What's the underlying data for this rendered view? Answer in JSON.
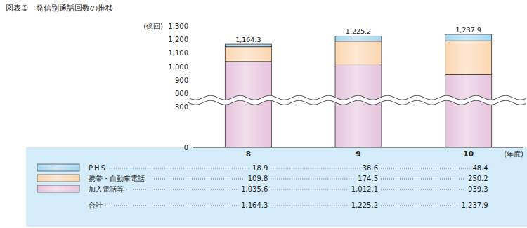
{
  "chart_data": {
    "type": "bar",
    "title": "図表①　発信別通話回数の推移",
    "y_label": "(億回)",
    "x_label": "(年度)",
    "categories": [
      "8",
      "9",
      "10"
    ],
    "stacked": true,
    "grid": false,
    "series": [
      {
        "name": "PHS",
        "color": "#a3d6f1",
        "values": [
          18.9,
          38.6,
          48.4
        ]
      },
      {
        "name": "携帯・自動車電話",
        "color": "#fbd6b0",
        "values": [
          109.8,
          174.5,
          250.2
        ]
      },
      {
        "name": "加入電話等",
        "color": "#e6c3dd",
        "values": [
          1035.6,
          1012.1,
          939.3
        ],
        "value_labels": [
          "1,035.6",
          "1,012.1",
          "939.3"
        ]
      }
    ],
    "totals": {
      "name": "合計",
      "values": [
        1164.3,
        1225.2,
        1237.9
      ],
      "value_labels": [
        "1,164.3",
        "1,225.2",
        "1,237.9"
      ]
    },
    "ylim": [
      0,
      1300
    ],
    "yticks": [
      0,
      300,
      800,
      900,
      {
        "value": 1000,
        "label": "1,000"
      },
      {
        "value": 1100,
        "label": "1,100"
      },
      {
        "value": 1200,
        "label": "1,200"
      },
      {
        "value": 1300,
        "label": "1,300"
      }
    ]
  }
}
